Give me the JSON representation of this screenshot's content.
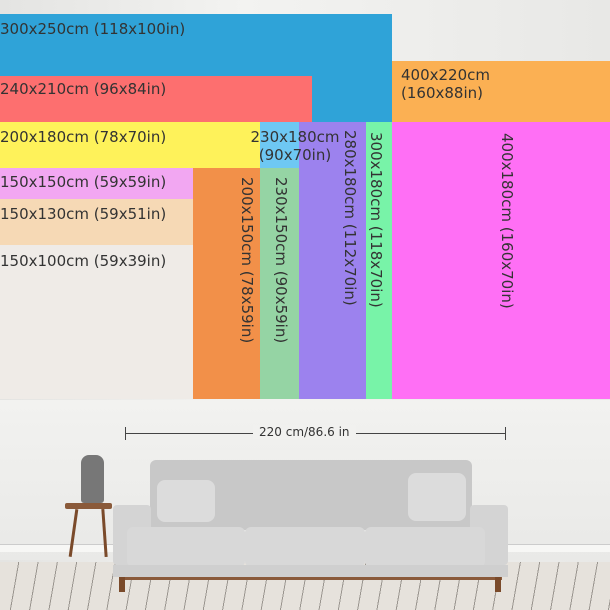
{
  "sizes": [
    {
      "label": "300x250cm (118x100in)",
      "color": "#2fa3d8"
    },
    {
      "label": "400x220cm",
      "label2": "(160x88in)",
      "color": "#fbb053"
    },
    {
      "label": "240x210cm (96x84in)",
      "color": "#fd6f6f"
    },
    {
      "label": "200x180cm (78x70in)",
      "color": "#fef25a"
    },
    {
      "label": "230x180cm",
      "label2": "(90x70in)",
      "color": "#6ec8f3"
    },
    {
      "label": "280x180cm (112x70in)",
      "color": "#9c82ee"
    },
    {
      "label": "300x180cm (118x70in)",
      "color": "#78f3a8"
    },
    {
      "label": "400x180cm (160x70in)",
      "color": "#ff6ff5"
    },
    {
      "label": "150x150cm (59x59in)",
      "color": "#f2a7f2"
    },
    {
      "label": "150x130cm (59x51in)",
      "color": "#f6d9b5"
    },
    {
      "label": "150x100cm (59x39in)",
      "color": "#efebe7"
    },
    {
      "label": "200x150cm (78x59in)",
      "color": "#f29049"
    },
    {
      "label": "230x150cm (90x59in)",
      "color": "#95d4a4"
    }
  ],
  "dimension": {
    "label": "220 cm/86.6 in"
  }
}
